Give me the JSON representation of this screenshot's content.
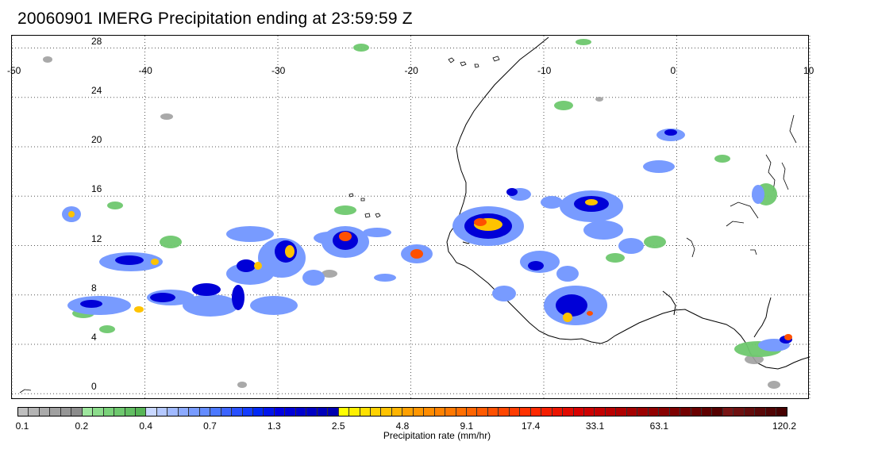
{
  "title": "20060901 IMERG Precipitation ending at 23:59:59 Z",
  "map": {
    "lon_ticks": [
      "-50",
      "-40",
      "-30",
      "-20",
      "-10",
      "0",
      "10"
    ],
    "lat_ticks": [
      "28",
      "24",
      "20",
      "16",
      "12",
      "8",
      "4",
      "0"
    ],
    "lon_range": [
      -50,
      10
    ],
    "lat_range": [
      -0.5,
      29
    ],
    "grid": "dotted"
  },
  "colorbar": {
    "title": "Precipitation rate (mm/hr)",
    "ticks": [
      "0.1",
      "0.2",
      "0.4",
      "0.7",
      "1.3",
      "2.5",
      "4.8",
      "9.1",
      "17.4",
      "33.1",
      "63.1",
      "120.2"
    ],
    "colors": [
      "#bebebe",
      "#b4b4b4",
      "#aaaaaa",
      "#a0a0a0",
      "#969696",
      "#8c8c8c",
      "#9ee69e",
      "#8cdc8c",
      "#7ad27a",
      "#6ec86e",
      "#62be62",
      "#56b456",
      "#c8d7ff",
      "#b4c8ff",
      "#a0b9ff",
      "#8caaff",
      "#789bff",
      "#648cff",
      "#4b78ff",
      "#3c64ff",
      "#2850ff",
      "#143cff",
      "#0028f5",
      "#0014eb",
      "#0000e1",
      "#0000d7",
      "#0000cd",
      "#0000c3",
      "#0000b9",
      "#0000af",
      "#ffff00",
      "#fff000",
      "#ffe100",
      "#ffd200",
      "#ffc300",
      "#ffb400",
      "#ffa000",
      "#ff9600",
      "#ff8c00",
      "#ff8200",
      "#ff7800",
      "#ff6e00",
      "#ff6400",
      "#ff5a00",
      "#ff5000",
      "#ff4600",
      "#ff3c00",
      "#ff3200",
      "#ff2800",
      "#f51e00",
      "#eb1400",
      "#e10a00",
      "#d70000",
      "#cd0000",
      "#c30000",
      "#b90000",
      "#af0000",
      "#a50000",
      "#9b0000",
      "#910000",
      "#870000",
      "#7d0000",
      "#730000",
      "#690000",
      "#5f0000",
      "#550000",
      "#781414",
      "#6e1010",
      "#640c0c",
      "#5a0808",
      "#500404",
      "#460000"
    ]
  }
}
